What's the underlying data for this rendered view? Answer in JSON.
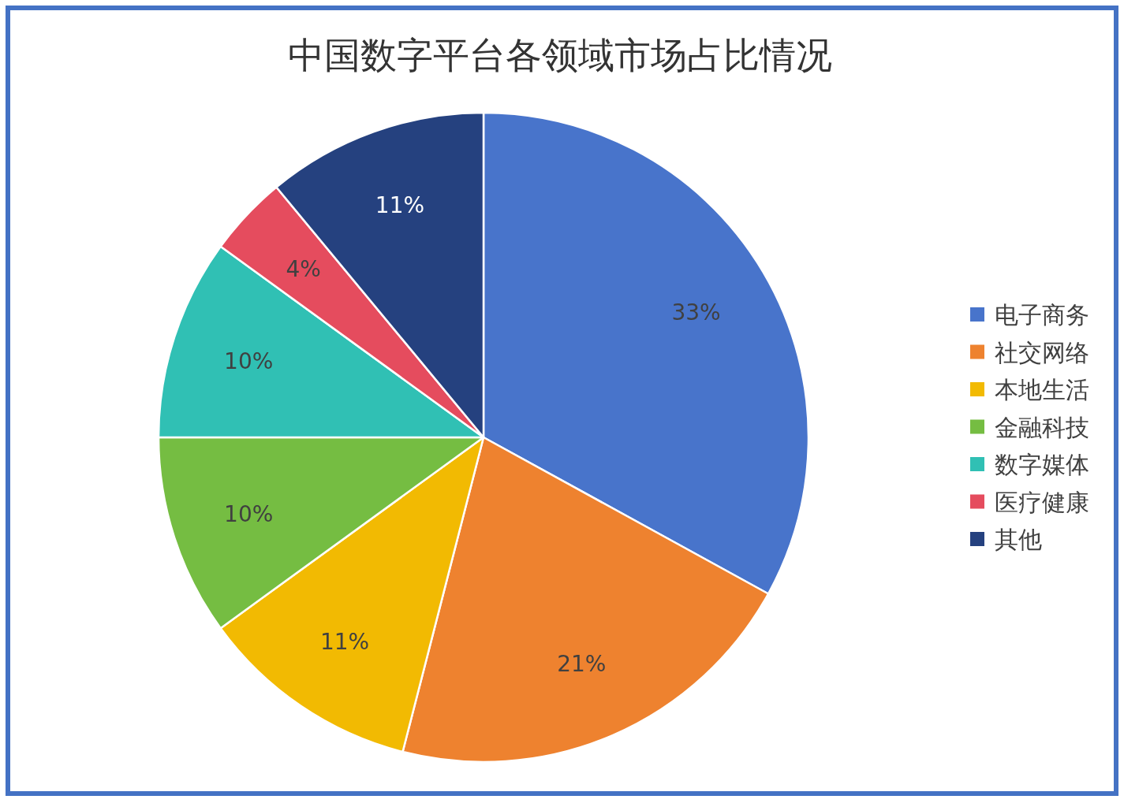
{
  "chart_data": {
    "type": "pie",
    "title": "中国数字平台各领域市场占比情况",
    "categories": [
      "电子商务",
      "社交网络",
      "本地生活",
      "金融科技",
      "数字媒体",
      "医疗健康",
      "其他"
    ],
    "values": [
      33,
      21,
      11,
      10,
      10,
      4,
      11
    ],
    "value_labels": [
      "33%",
      "21%",
      "11%",
      "10%",
      "10%",
      "4%",
      "11%"
    ],
    "colors": [
      "#4874cb",
      "#ee822f",
      "#f2ba02",
      "#75bd42",
      "#30c0b4",
      "#e54c5e",
      "#25417f"
    ],
    "legend": "right"
  }
}
